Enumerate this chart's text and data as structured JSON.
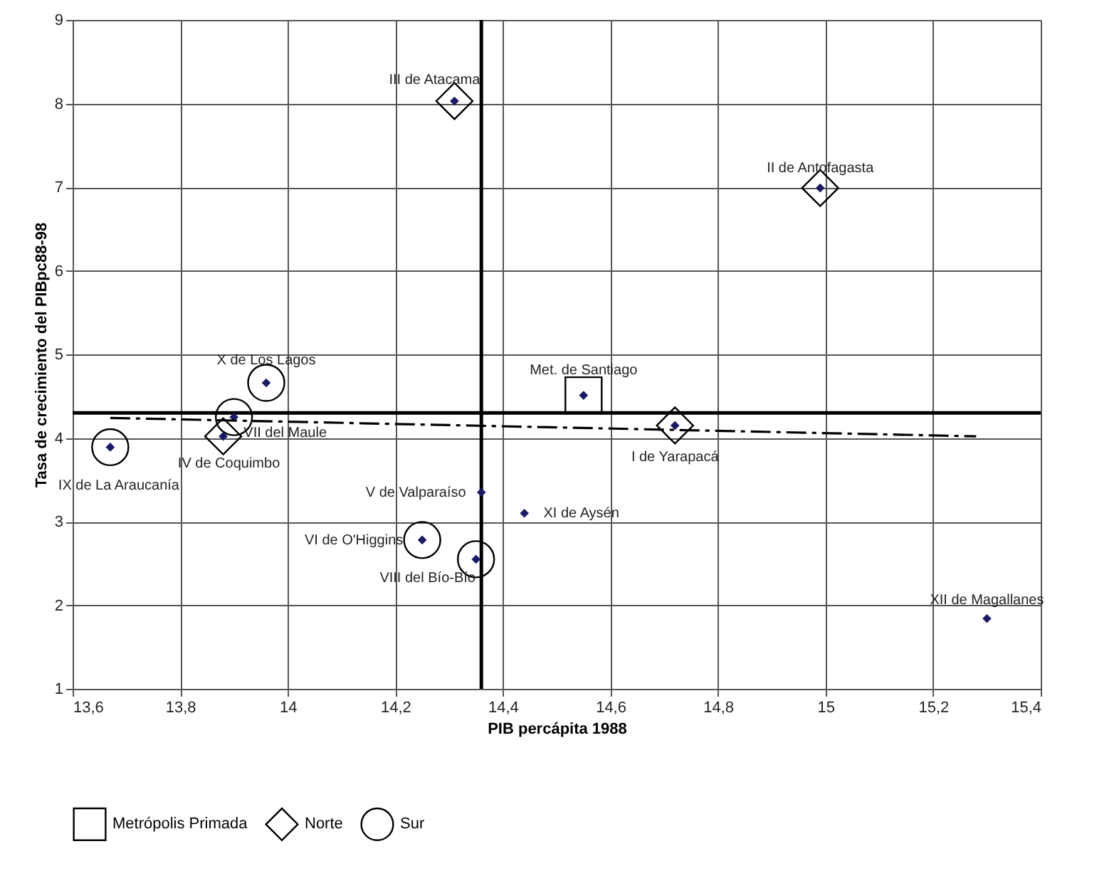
{
  "chart_data": {
    "type": "scatter",
    "xlabel": "PIB percápita  1988",
    "ylabel": "Tasa de crecimiento del PIBpc88-98",
    "xlim": [
      13.6,
      15.4
    ],
    "ylim": [
      1,
      9
    ],
    "xticks": [
      {
        "value": 13.6,
        "label": "13,6"
      },
      {
        "value": 13.8,
        "label": "13,8"
      },
      14,
      {
        "value": 14.2,
        "label": "14,2"
      },
      {
        "value": 14.4,
        "label": "14,4"
      },
      {
        "value": 14.6,
        "label": "14,6"
      },
      {
        "value": 14.8,
        "label": "14,8"
      },
      15,
      {
        "value": 15.2,
        "label": "15,2"
      },
      {
        "value": 15.4,
        "label": "15,4"
      }
    ],
    "yticks": [
      1,
      2,
      3,
      4,
      5,
      6,
      7,
      8,
      9
    ],
    "grid": true,
    "legend": "bottom",
    "series": [
      {
        "marker": "diamond",
        "color": "#1a1a66",
        "x": [
          14.31,
          14.99,
          13.96,
          13.9,
          13.88,
          13.67,
          14.55,
          14.72,
          14.36,
          14.44,
          14.25,
          14.35,
          15.3
        ],
        "values": [
          8.03,
          6.99,
          4.66,
          4.25,
          4.02,
          3.89,
          4.51,
          4.15,
          3.35,
          3.1,
          2.78,
          2.55,
          1.84
        ]
      },
      {
        "name": "Metrópolis Primada",
        "marker": "square",
        "color": "#000000",
        "x": [
          14.55
        ],
        "values": [
          4.51
        ]
      },
      {
        "name": "Norte",
        "marker": "diamond",
        "color": "#000000",
        "x": [
          14.31,
          14.99,
          13.88,
          14.72
        ],
        "values": [
          8.03,
          6.99,
          4.02,
          4.15
        ]
      },
      {
        "name": "Sur",
        "marker": "circle",
        "color": "#000000",
        "x": [
          13.96,
          13.9,
          13.67,
          14.25,
          14.35
        ],
        "values": [
          4.66,
          4.25,
          3.89,
          2.78,
          2.55
        ]
      },
      {
        "type": "line",
        "line_style": "dashed",
        "color": "#000000",
        "x": [
          13.67,
          15.28
        ],
        "values": [
          4.24,
          4.02
        ]
      }
    ],
    "ref_lines": [
      {
        "axis": "x",
        "value": 14.36,
        "color": "#000000"
      },
      {
        "axis": "y",
        "value": 4.3,
        "color": "#000000"
      }
    ],
    "annotations": [
      {
        "text": "III de Atacama",
        "x": 14.31,
        "y": 8.03
      },
      {
        "text": "II de Antofagasta",
        "x": 14.99,
        "y": 6.99
      },
      {
        "text": "X de Los Lagos",
        "x": 13.96,
        "y": 4.66
      },
      {
        "text": "VII del Maule",
        "x": 13.9,
        "y": 4.25
      },
      {
        "text": "IV de Coquimbo",
        "x": 13.88,
        "y": 4.02
      },
      {
        "text": "IX de La Araucanía",
        "x": 13.67,
        "y": 3.89
      },
      {
        "text": "Met. de Santiago",
        "x": 14.55,
        "y": 4.51
      },
      {
        "text": "I de Yarapacá",
        "x": 14.72,
        "y": 4.15
      },
      {
        "text": "V de Valparaíso",
        "x": 14.36,
        "y": 3.35
      },
      {
        "text": "XI de Aysén",
        "x": 14.44,
        "y": 3.1
      },
      {
        "text": "VI de O'Higgins",
        "x": 14.25,
        "y": 2.78
      },
      {
        "text": "VIII del Bío-Bío",
        "x": 14.35,
        "y": 2.55
      },
      {
        "text": "XII de Magallanes",
        "x": 15.3,
        "y": 1.84
      }
    ]
  }
}
